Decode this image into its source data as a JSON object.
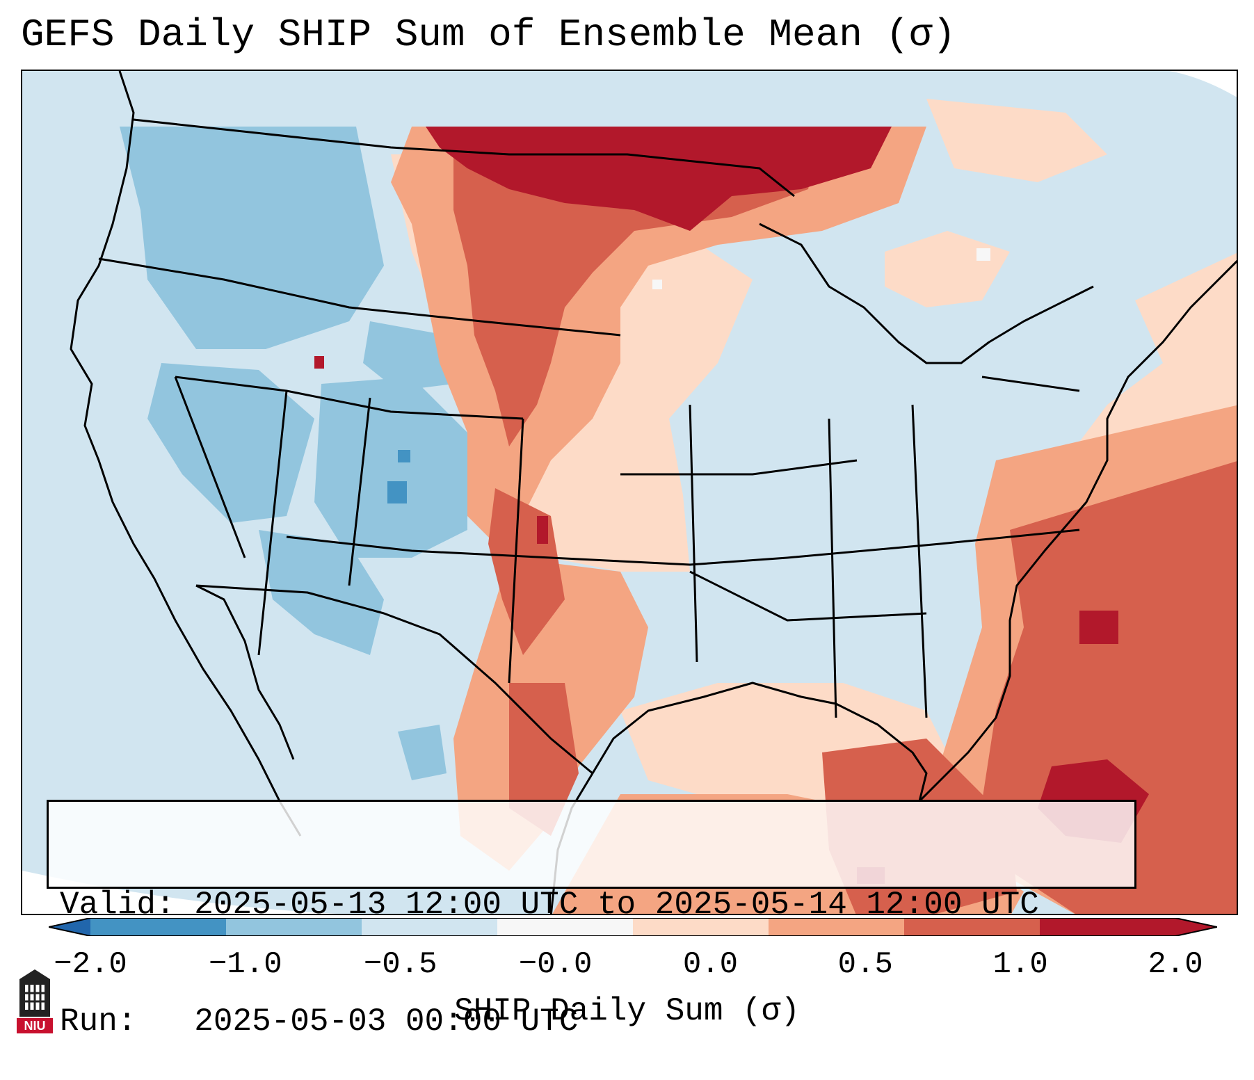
{
  "title": "GEFS Daily SHIP Sum of Ensemble Mean (σ)",
  "info": {
    "valid_label": "Valid:",
    "valid_value": "2025-05-13 12:00 UTC to 2025-05-14 12:00 UTC",
    "run_label": "Run:",
    "run_value": "2025-05-03 00:00 UTC"
  },
  "colorbar": {
    "label": "SHIP Daily Sum (σ)",
    "ticks": [
      "−2.0",
      "−1.0",
      "−0.5",
      "−0.0",
      "0.0",
      "0.5",
      "1.0",
      "2.0"
    ],
    "colors": [
      "#4393c3",
      "#92c5de",
      "#d1e5f0",
      "#f7f7f7",
      "#fddbc7",
      "#f4a582",
      "#d6604d",
      "#b2182b"
    ],
    "extend": "both"
  },
  "logo": {
    "text": "NIU",
    "color": "#c8102e"
  }
}
